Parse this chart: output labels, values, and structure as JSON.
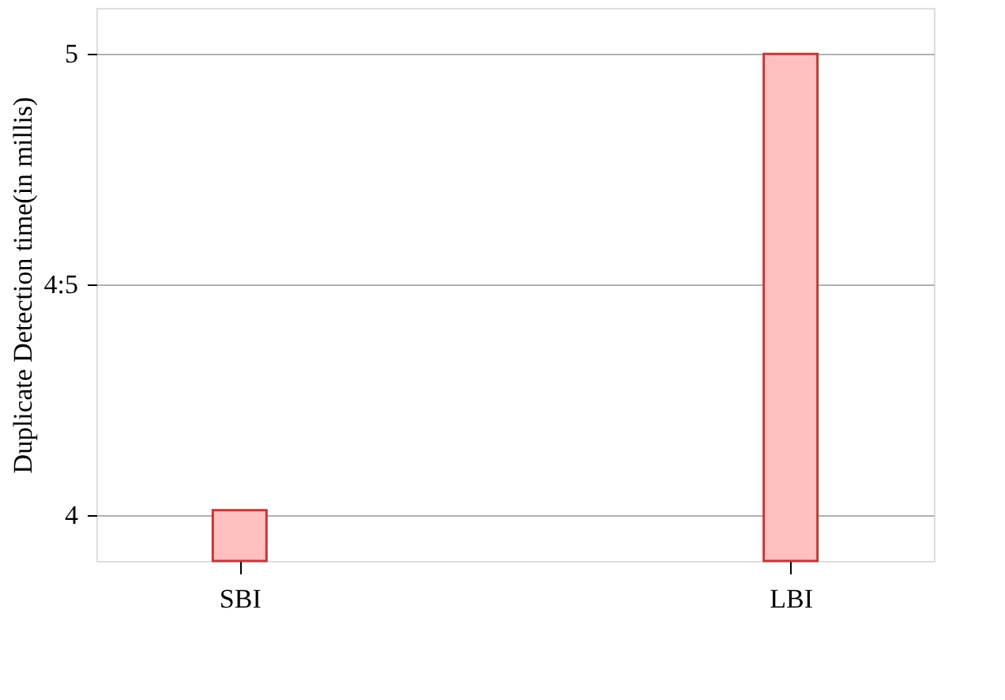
{
  "chart_data": {
    "type": "bar",
    "ylabel": "Duplicate  Detection  time(in  millis)",
    "categories": [
      "SBI",
      "LBI"
    ],
    "series": [
      {
        "color": "#ffbfbf",
        "values": [
          4.01,
          5.0
        ]
      }
    ],
    "ylim": [
      3.9,
      5.1
    ],
    "yticks": [
      4,
      {
        "value": 4.5,
        "label": "4:5"
      },
      5
    ],
    "grid": "y",
    "legend": false
  }
}
